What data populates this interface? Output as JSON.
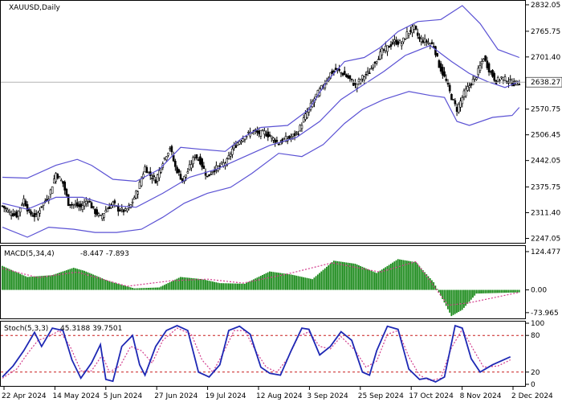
{
  "chart_data": [
    {
      "type": "candlestick",
      "title": "XAUUSD,Daily",
      "price_tag": "2638.27",
      "current_price": 2638.27,
      "ylim": [
        2236,
        2842
      ],
      "y_ticks": [
        "2832.05",
        "2765.75",
        "2701.40",
        "2638.27",
        "2570.75",
        "2506.45",
        "2442.05",
        "2375.75",
        "2311.40",
        "2247.05"
      ],
      "y_tick_values": [
        2832.05,
        2765.75,
        2701.4,
        2638.27,
        2570.75,
        2506.45,
        2442.05,
        2375.75,
        2311.4,
        2247.05
      ],
      "x_ticks": [
        "22 Apr 2024",
        "14 May 2024",
        "5 Jun 2024",
        "27 Jun 2024",
        "19 Jul 2024",
        "12 Aug 2024",
        "3 Sep 2024",
        "25 Sep 2024",
        "17 Oct 2024",
        "8 Nov 2024",
        "2 Dec 2024"
      ],
      "colors": {
        "bands": "#5b52d4",
        "bars": "#000000",
        "price_line": "#b4b4b4"
      },
      "close_path": [
        [
          0,
          2328
        ],
        [
          4,
          2312
        ],
        [
          8,
          2305
        ],
        [
          12,
          2345
        ],
        [
          15,
          2310
        ],
        [
          19,
          2302
        ],
        [
          22,
          2330
        ],
        [
          26,
          2352
        ],
        [
          30,
          2410
        ],
        [
          34,
          2385
        ],
        [
          37,
          2335
        ],
        [
          40,
          2332
        ],
        [
          44,
          2325
        ],
        [
          48,
          2345
        ],
        [
          51,
          2318
        ],
        [
          55,
          2300
        ],
        [
          58,
          2318
        ],
        [
          62,
          2335
        ],
        [
          65,
          2320
        ],
        [
          69,
          2315
        ],
        [
          72,
          2330
        ],
        [
          76,
          2370
        ],
        [
          80,
          2425
        ],
        [
          83,
          2405
        ],
        [
          86,
          2392
        ],
        [
          90,
          2440
        ],
        [
          94,
          2475
        ],
        [
          97,
          2425
        ],
        [
          101,
          2392
        ],
        [
          104,
          2415
        ],
        [
          108,
          2455
        ],
        [
          111,
          2440
        ],
        [
          115,
          2400
        ],
        [
          118,
          2418
        ],
        [
          122,
          2428
        ],
        [
          126,
          2440
        ],
        [
          129,
          2470
        ],
        [
          133,
          2492
        ],
        [
          137,
          2505
        ],
        [
          140,
          2515
        ],
        [
          144,
          2510
        ],
        [
          147,
          2512
        ],
        [
          151,
          2500
        ],
        [
          155,
          2485
        ],
        [
          158,
          2495
        ],
        [
          162,
          2500
        ],
        [
          166,
          2515
        ],
        [
          169,
          2545
        ],
        [
          173,
          2580
        ],
        [
          176,
          2605
        ],
        [
          180,
          2630
        ],
        [
          184,
          2660
        ],
        [
          187,
          2670
        ],
        [
          191,
          2660
        ],
        [
          195,
          2645
        ],
        [
          198,
          2630
        ],
        [
          202,
          2650
        ],
        [
          206,
          2665
        ],
        [
          209,
          2690
        ],
        [
          213,
          2715
        ],
        [
          216,
          2725
        ],
        [
          220,
          2740
        ],
        [
          224,
          2735
        ],
        [
          227,
          2760
        ],
        [
          231,
          2775
        ],
        [
          234,
          2745
        ],
        [
          238,
          2740
        ],
        [
          242,
          2730
        ],
        [
          245,
          2680
        ],
        [
          249,
          2640
        ],
        [
          252,
          2600
        ],
        [
          255,
          2570
        ],
        [
          259,
          2610
        ],
        [
          262,
          2630
        ],
        [
          266,
          2655
        ],
        [
          270,
          2700
        ],
        [
          273,
          2670
        ],
        [
          277,
          2640
        ],
        [
          280,
          2650
        ],
        [
          284,
          2640
        ],
        [
          287,
          2635
        ],
        [
          290,
          2638
        ]
      ],
      "bb_upper": [
        [
          0,
          2400
        ],
        [
          14,
          2398
        ],
        [
          30,
          2430
        ],
        [
          42,
          2445
        ],
        [
          50,
          2430
        ],
        [
          62,
          2395
        ],
        [
          75,
          2390
        ],
        [
          88,
          2420
        ],
        [
          100,
          2475
        ],
        [
          112,
          2470
        ],
        [
          125,
          2465
        ],
        [
          135,
          2500
        ],
        [
          145,
          2525
        ],
        [
          160,
          2530
        ],
        [
          172,
          2570
        ],
        [
          182,
          2640
        ],
        [
          192,
          2690
        ],
        [
          203,
          2700
        ],
        [
          212,
          2725
        ],
        [
          222,
          2765
        ],
        [
          233,
          2790
        ],
        [
          246,
          2795
        ],
        [
          258,
          2830
        ],
        [
          268,
          2785
        ],
        [
          278,
          2720
        ],
        [
          290,
          2700
        ]
      ],
      "bb_middle": [
        [
          0,
          2335
        ],
        [
          14,
          2320
        ],
        [
          30,
          2350
        ],
        [
          45,
          2350
        ],
        [
          60,
          2330
        ],
        [
          75,
          2325
        ],
        [
          90,
          2360
        ],
        [
          105,
          2400
        ],
        [
          120,
          2420
        ],
        [
          135,
          2450
        ],
        [
          150,
          2480
        ],
        [
          165,
          2500
        ],
        [
          178,
          2540
        ],
        [
          190,
          2595
        ],
        [
          202,
          2630
        ],
        [
          214,
          2665
        ],
        [
          226,
          2705
        ],
        [
          240,
          2730
        ],
        [
          252,
          2690
        ],
        [
          262,
          2660
        ],
        [
          272,
          2640
        ],
        [
          282,
          2625
        ],
        [
          290,
          2640
        ]
      ],
      "bb_lower": [
        [
          0,
          2275
        ],
        [
          14,
          2250
        ],
        [
          26,
          2275
        ],
        [
          40,
          2270
        ],
        [
          52,
          2262
        ],
        [
          64,
          2262
        ],
        [
          78,
          2270
        ],
        [
          90,
          2300
        ],
        [
          102,
          2335
        ],
        [
          115,
          2360
        ],
        [
          128,
          2375
        ],
        [
          140,
          2410
        ],
        [
          155,
          2460
        ],
        [
          168,
          2452
        ],
        [
          180,
          2482
        ],
        [
          192,
          2535
        ],
        [
          202,
          2570
        ],
        [
          214,
          2595
        ],
        [
          228,
          2615
        ],
        [
          240,
          2605
        ],
        [
          248,
          2600
        ],
        [
          255,
          2540
        ],
        [
          262,
          2530
        ],
        [
          275,
          2550
        ],
        [
          286,
          2555
        ],
        [
          290,
          2575
        ]
      ]
    },
    {
      "type": "macd",
      "label": "MACD(5,34,4)",
      "values_text": "-8.447 -7.893",
      "histogram_value": -8.447,
      "signal_value": -7.893,
      "ylim": [
        -90,
        140
      ],
      "y_ticks": [
        "124.477",
        "0.00",
        "-73.965"
      ],
      "y_tick_values": [
        124.477,
        0,
        -73.965
      ],
      "colors": {
        "histogram": "#1a8a1a",
        "signal": "#d23c8c"
      },
      "histogram": [
        [
          0,
          78
        ],
        [
          14,
          42
        ],
        [
          28,
          48
        ],
        [
          40,
          72
        ],
        [
          46,
          62
        ],
        [
          60,
          28
        ],
        [
          74,
          5
        ],
        [
          88,
          8
        ],
        [
          100,
          42
        ],
        [
          112,
          35
        ],
        [
          122,
          22
        ],
        [
          136,
          20
        ],
        [
          150,
          60
        ],
        [
          162,
          50
        ],
        [
          174,
          35
        ],
        [
          186,
          95
        ],
        [
          198,
          85
        ],
        [
          210,
          55
        ],
        [
          222,
          100
        ],
        [
          232,
          90
        ],
        [
          242,
          25
        ],
        [
          252,
          -85
        ],
        [
          258,
          -65
        ],
        [
          266,
          -12
        ],
        [
          290,
          -8
        ]
      ],
      "signal": [
        [
          0,
          70
        ],
        [
          20,
          40
        ],
        [
          42,
          58
        ],
        [
          70,
          12
        ],
        [
          95,
          30
        ],
        [
          115,
          35
        ],
        [
          135,
          22
        ],
        [
          160,
          52
        ],
        [
          185,
          88
        ],
        [
          212,
          58
        ],
        [
          232,
          92
        ],
        [
          250,
          -50
        ],
        [
          262,
          -42
        ],
        [
          290,
          -8
        ]
      ]
    },
    {
      "type": "stochastic",
      "label": "Stoch(5,3,3)",
      "values_text": "45.3188 39.7501",
      "main_value": 45.3188,
      "signal_value": 39.7501,
      "ylim": [
        0,
        100
      ],
      "y_ticks": [
        "100",
        "80",
        "20",
        "0"
      ],
      "y_tick_values": [
        100,
        80,
        20,
        0
      ],
      "levels": [
        80,
        20
      ],
      "colors": {
        "main": "#1e28b4",
        "signal": "#d23c8c",
        "levels": "#c81e1e"
      },
      "main": [
        [
          0,
          12
        ],
        [
          6,
          30
        ],
        [
          12,
          55
        ],
        [
          18,
          85
        ],
        [
          22,
          62
        ],
        [
          28,
          92
        ],
        [
          34,
          88
        ],
        [
          39,
          40
        ],
        [
          44,
          10
        ],
        [
          50,
          35
        ],
        [
          55,
          65
        ],
        [
          58,
          8
        ],
        [
          62,
          5
        ],
        [
          67,
          62
        ],
        [
          73,
          80
        ],
        [
          77,
          32
        ],
        [
          80,
          15
        ],
        [
          86,
          62
        ],
        [
          92,
          88
        ],
        [
          98,
          96
        ],
        [
          104,
          88
        ],
        [
          110,
          20
        ],
        [
          116,
          12
        ],
        [
          122,
          32
        ],
        [
          127,
          88
        ],
        [
          133,
          95
        ],
        [
          139,
          82
        ],
        [
          145,
          28
        ],
        [
          150,
          18
        ],
        [
          156,
          15
        ],
        [
          162,
          55
        ],
        [
          168,
          92
        ],
        [
          172,
          90
        ],
        [
          178,
          48
        ],
        [
          184,
          62
        ],
        [
          190,
          86
        ],
        [
          196,
          72
        ],
        [
          202,
          20
        ],
        [
          206,
          15
        ],
        [
          210,
          55
        ],
        [
          216,
          95
        ],
        [
          222,
          90
        ],
        [
          228,
          25
        ],
        [
          234,
          8
        ],
        [
          238,
          10
        ],
        [
          243,
          4
        ],
        [
          248,
          12
        ],
        [
          254,
          96
        ],
        [
          258,
          92
        ],
        [
          263,
          42
        ],
        [
          268,
          20
        ],
        [
          275,
          32
        ],
        [
          285,
          45
        ]
      ],
      "signal": [
        [
          0,
          10
        ],
        [
          8,
          25
        ],
        [
          14,
          50
        ],
        [
          20,
          72
        ],
        [
          26,
          78
        ],
        [
          32,
          88
        ],
        [
          38,
          62
        ],
        [
          44,
          22
        ],
        [
          50,
          22
        ],
        [
          56,
          48
        ],
        [
          60,
          20
        ],
        [
          66,
          30
        ],
        [
          72,
          62
        ],
        [
          78,
          55
        ],
        [
          84,
          35
        ],
        [
          90,
          72
        ],
        [
          98,
          92
        ],
        [
          106,
          82
        ],
        [
          112,
          40
        ],
        [
          118,
          20
        ],
        [
          124,
          52
        ],
        [
          130,
          88
        ],
        [
          136,
          88
        ],
        [
          142,
          55
        ],
        [
          148,
          28
        ],
        [
          154,
          20
        ],
        [
          160,
          42
        ],
        [
          166,
          78
        ],
        [
          172,
          86
        ],
        [
          178,
          62
        ],
        [
          184,
          58
        ],
        [
          190,
          78
        ],
        [
          198,
          55
        ],
        [
          204,
          28
        ],
        [
          210,
          38
        ],
        [
          216,
          82
        ],
        [
          222,
          88
        ],
        [
          228,
          45
        ],
        [
          234,
          15
        ],
        [
          240,
          6
        ],
        [
          246,
          10
        ],
        [
          252,
          60
        ],
        [
          258,
          90
        ],
        [
          264,
          58
        ],
        [
          270,
          28
        ],
        [
          278,
          30
        ],
        [
          285,
          40
        ]
      ]
    }
  ]
}
